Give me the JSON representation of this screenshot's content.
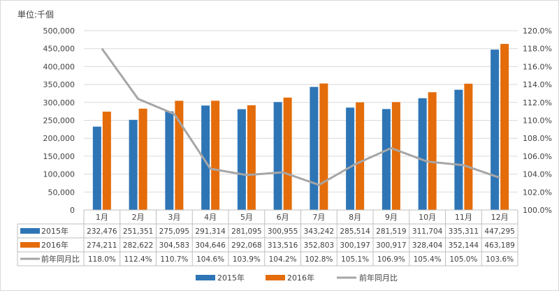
{
  "chart_data": {
    "type": "bar",
    "unit_label": "単位:千個",
    "categories": [
      "1月",
      "2月",
      "3月",
      "4月",
      "5月",
      "6月",
      "7月",
      "8月",
      "9月",
      "10月",
      "11月",
      "12月"
    ],
    "series": [
      {
        "name": "2015年",
        "color": "#2e75b6",
        "values": [
          232476,
          251351,
          275095,
          291314,
          281095,
          300955,
          343242,
          285514,
          281519,
          311704,
          335311,
          447295
        ],
        "labels": [
          "232,476",
          "251,351",
          "275,095",
          "291,314",
          "281,095",
          "300,955",
          "343,242",
          "285,514",
          "281,519",
          "311,704",
          "335,311",
          "447,295"
        ]
      },
      {
        "name": "2016年",
        "color": "#e46c0a",
        "values": [
          274211,
          282622,
          304583,
          304646,
          292068,
          313516,
          352803,
          300197,
          300917,
          328404,
          352144,
          463189
        ],
        "labels": [
          "274,211",
          "282,622",
          "304,583",
          "304,646",
          "292,068",
          "313,516",
          "352,803",
          "300,197",
          "300,917",
          "328,404",
          "352,144",
          "463,189"
        ]
      }
    ],
    "line_series": {
      "name": "前年同月比",
      "color": "#a6a6a6",
      "values": [
        118.0,
        112.4,
        110.7,
        104.6,
        103.9,
        104.2,
        102.8,
        105.1,
        106.9,
        105.4,
        105.0,
        103.6
      ],
      "labels": [
        "118.0%",
        "112.4%",
        "110.7%",
        "104.6%",
        "103.9%",
        "104.2%",
        "102.8%",
        "105.1%",
        "106.9%",
        "105.4%",
        "105.0%",
        "103.6%"
      ]
    },
    "y_left": {
      "min": 0,
      "max": 500000,
      "step": 50000,
      "ticks": [
        "0",
        "50,000",
        "100,000",
        "150,000",
        "200,000",
        "250,000",
        "300,000",
        "350,000",
        "400,000",
        "450,000",
        "500,000"
      ]
    },
    "y_right": {
      "min": 100,
      "max": 120,
      "step": 2,
      "ticks": [
        "100.0%",
        "102.0%",
        "104.0%",
        "106.0%",
        "108.0%",
        "110.0%",
        "112.0%",
        "114.0%",
        "116.0%",
        "118.0%",
        "120.0%"
      ]
    },
    "grid": true,
    "legend_position": "bottom",
    "data_table": true
  }
}
